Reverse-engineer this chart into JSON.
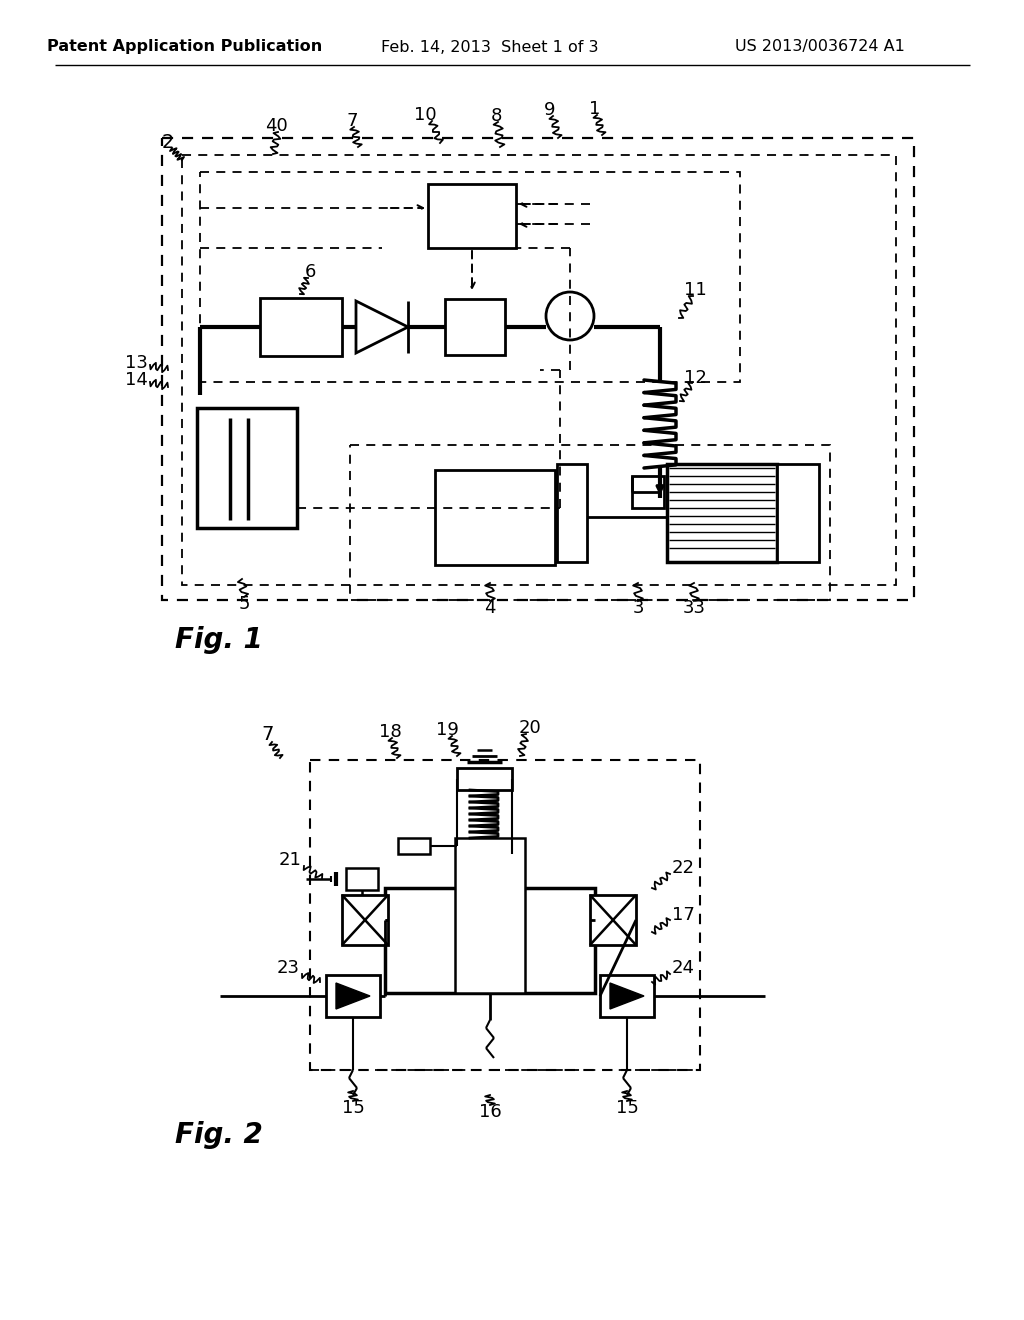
{
  "bg": "#ffffff",
  "lc": "#000000",
  "hdr_l": "Patent Application Publication",
  "hdr_m": "Feb. 14, 2013  Sheet 1 of 3",
  "hdr_r": "US 2013/0036724 A1"
}
